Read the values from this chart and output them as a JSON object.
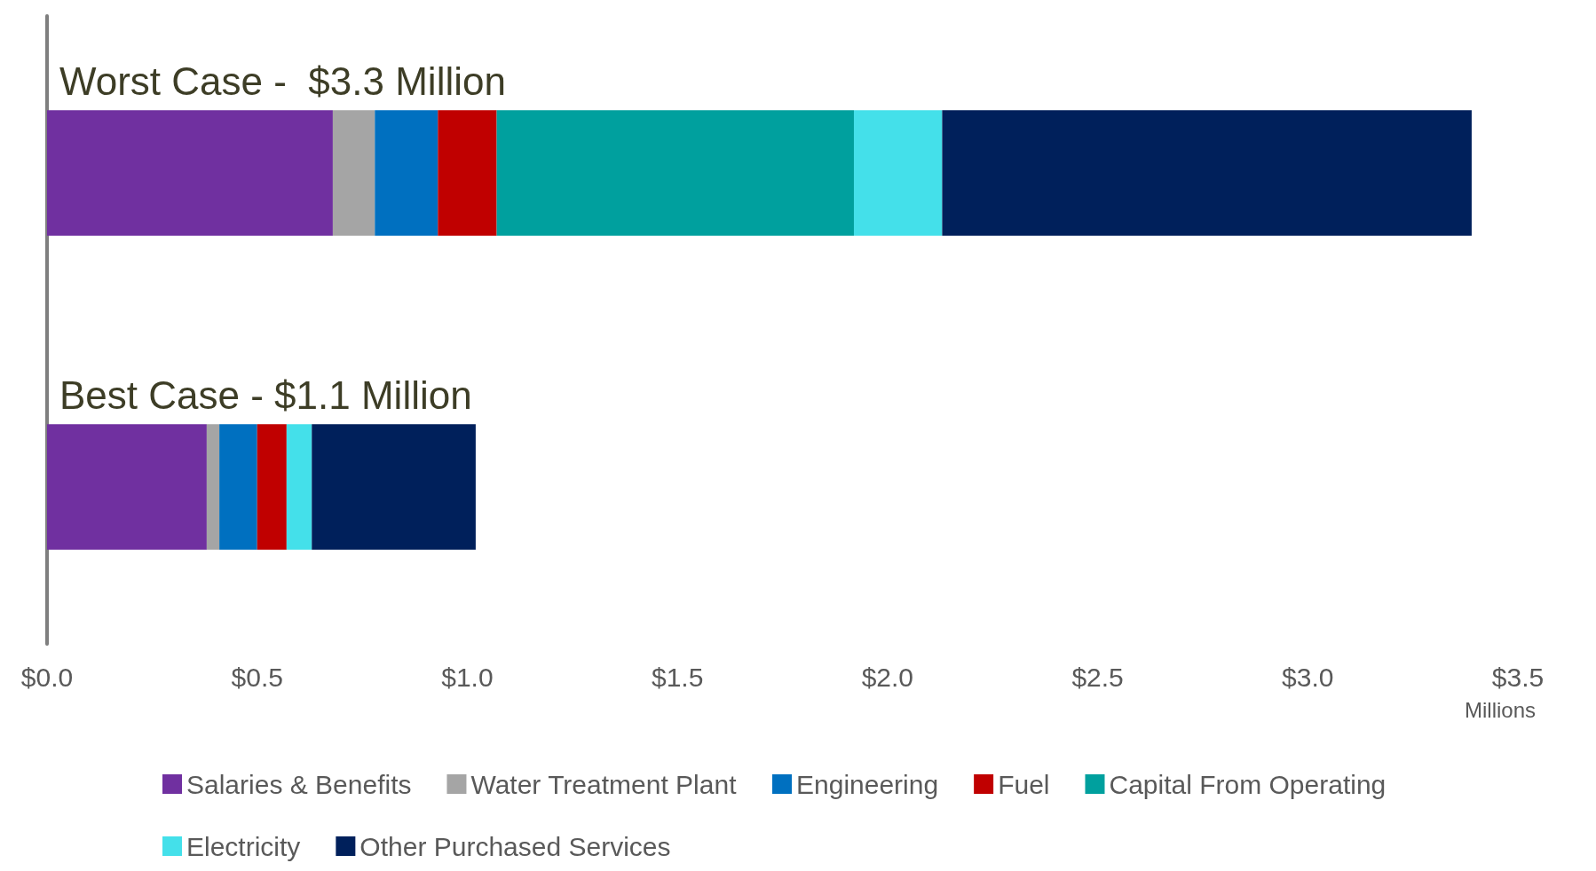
{
  "chart_data": {
    "type": "bar",
    "orientation": "horizontal",
    "stacked": true,
    "categories": [
      "Worst Case -  $3.3 Million",
      "Best Case - $1.1 Million"
    ],
    "series": [
      {
        "name": "Salaries & Benefits",
        "color": "#7030a0",
        "values": [
          0.68,
          0.38
        ]
      },
      {
        "name": "Water Treatment Plant",
        "color": "#a5a5a5",
        "values": [
          0.1,
          0.03
        ]
      },
      {
        "name": "Engineering",
        "color": "#0070c0",
        "values": [
          0.15,
          0.09
        ]
      },
      {
        "name": "Fuel",
        "color": "#c00000",
        "values": [
          0.14,
          0.07
        ]
      },
      {
        "name": "Capital From Operating",
        "color": "#00a09e",
        "values": [
          0.85,
          0
        ]
      },
      {
        "name": "Electricity",
        "color": "#44e0ea",
        "values": [
          0.21,
          0.06
        ]
      },
      {
        "name": "Other Purchased Services",
        "color": "#00205b",
        "values": [
          1.26,
          0.39
        ]
      }
    ],
    "xlabel": "Millions",
    "xlim": [
      0,
      3.5
    ],
    "xticks": [
      {
        "value": 0,
        "label": "$0.0"
      },
      {
        "value": 0.5,
        "label": "$0.5"
      },
      {
        "value": 1,
        "label": "$1.0"
      },
      {
        "value": 1.5,
        "label": "$1.5"
      },
      {
        "value": 2,
        "label": "$2.0"
      },
      {
        "value": 2.5,
        "label": "$2.5"
      },
      {
        "value": 3,
        "label": "$3.0"
      },
      {
        "value": 3.5,
        "label": "$3.5"
      }
    ],
    "grid": false,
    "legend": "bottom"
  }
}
